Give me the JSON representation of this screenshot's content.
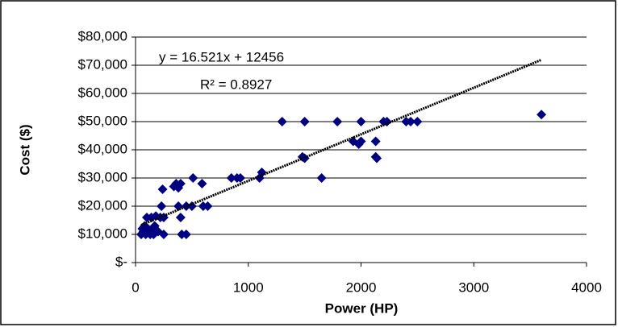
{
  "chart_data": {
    "type": "scatter",
    "xlabel": "Power (HP)",
    "ylabel": "Cost ($)",
    "annotations": [
      "y = 16.521x + 12456",
      "R² = 0.8927"
    ],
    "trendline": {
      "slope": 16.521,
      "intercept": 12456,
      "x": [
        50,
        3600
      ]
    },
    "series": [
      {
        "color": "#000080",
        "x": [
          50,
          60,
          70,
          80,
          90,
          100,
          110,
          120,
          130,
          140,
          150,
          160,
          170,
          180,
          200,
          220,
          230,
          240,
          250,
          250,
          340,
          360,
          380,
          400,
          380,
          400,
          410,
          450,
          450,
          510,
          500,
          590,
          600,
          640,
          850,
          900,
          930,
          1100,
          1120,
          1300,
          1500,
          1500,
          1480,
          1650,
          1790,
          1930,
          1980,
          2000,
          2000,
          2130,
          2130,
          2140,
          2200,
          2230,
          2400,
          2440,
          2500,
          3600
        ],
        "values": [
          10000,
          12000,
          11000,
          13000,
          10000,
          16000,
          12000,
          11000,
          10000,
          16000,
          12000,
          10000,
          13000,
          16500,
          11000,
          16000,
          20000,
          26000,
          10000,
          16000,
          27000,
          28000,
          26500,
          28000,
          20000,
          16000,
          10000,
          10000,
          20000,
          30000,
          20000,
          28000,
          20000,
          20000,
          30000,
          30000,
          30000,
          30000,
          32000,
          50000,
          50000,
          37000,
          37500,
          30000,
          50000,
          43000,
          42000,
          50000,
          43000,
          43000,
          37500,
          37000,
          50000,
          50000,
          50000,
          50000,
          50000,
          52500
        ]
      }
    ],
    "xlim": [
      0,
      4000
    ],
    "xticks": [
      0,
      1000,
      2000,
      3000,
      4000
    ],
    "ylim": [
      0,
      80000
    ],
    "yticks": [
      {
        "value": 0,
        "label": "$-"
      },
      {
        "value": 10000,
        "label": "$10,000"
      },
      {
        "value": 20000,
        "label": "$20,000"
      },
      {
        "value": 30000,
        "label": "$30,000"
      },
      {
        "value": 40000,
        "label": "$40,000"
      },
      {
        "value": 50000,
        "label": "$50,000"
      },
      {
        "value": 60000,
        "label": "$60,000"
      },
      {
        "value": 70000,
        "label": "$70,000"
      },
      {
        "value": 80000,
        "label": "$80,000"
      }
    ],
    "grid": true
  }
}
